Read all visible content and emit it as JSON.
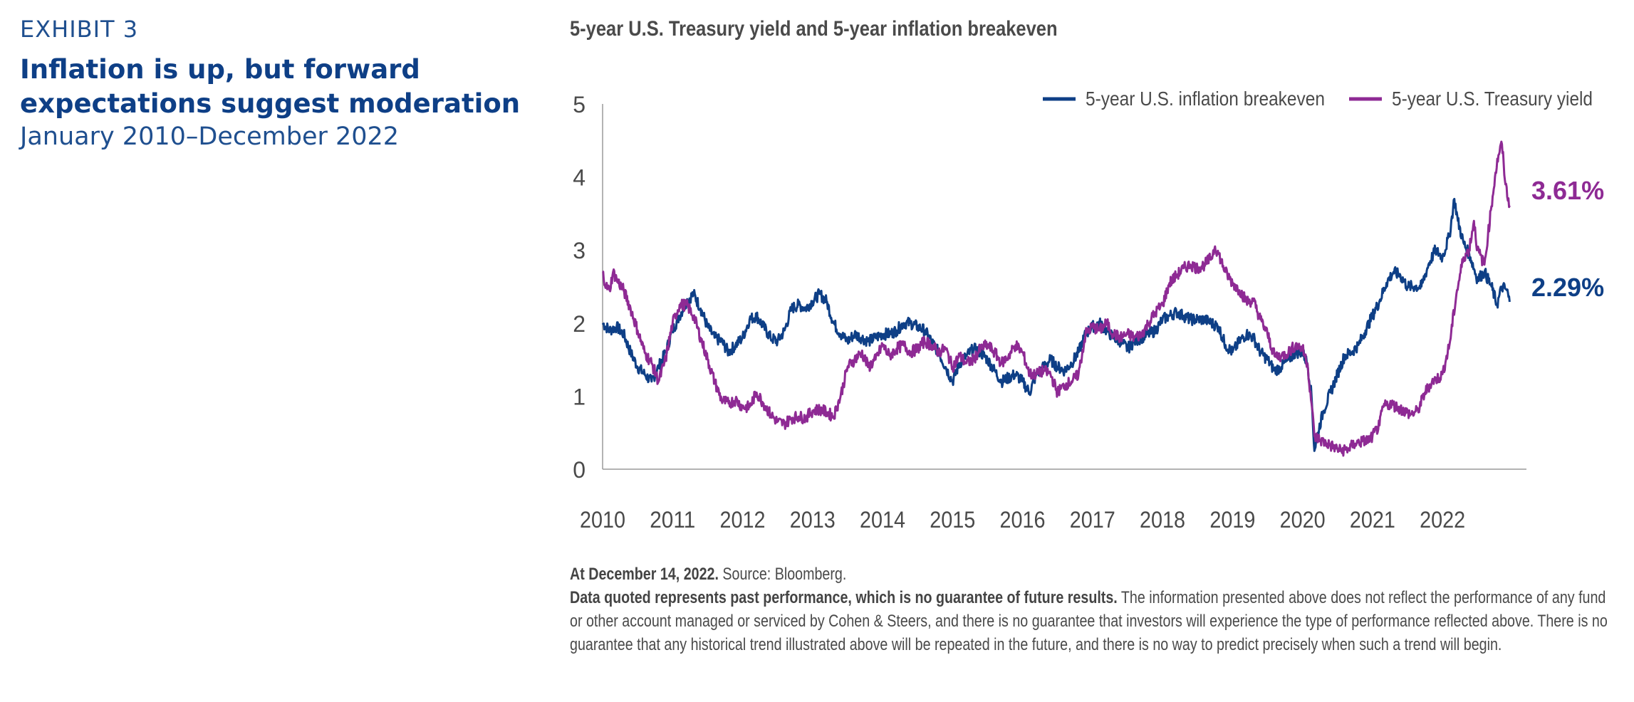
{
  "header": {
    "exhibit": "EXHIBIT 3",
    "title": "Inflation is up, but forward expectations suggest moderation",
    "date_range": "January 2010–December 2022"
  },
  "chart_title": "5-year U.S. Treasury yield and 5-year inflation breakeven",
  "legend": {
    "breakeven": "5-year U.S. inflation breakeven",
    "treasury": "5-year U.S. Treasury yield"
  },
  "end_labels": {
    "treasury": "3.61%",
    "breakeven": "2.29%"
  },
  "footnote": {
    "date_bold": "At December 14, 2022.",
    "source": " Source: Bloomberg.",
    "disclaimer_bold": "Data quoted represents past performance, which is no guarantee of future results.",
    "disclaimer": " The information presented above does not reflect the performance of any fund or other account managed or serviced by Cohen & Steers, and there is no guarantee that investors will experience the type of performance reflected above. There is no guarantee that any historical trend illustrated above will be repeated in the future, and there is no way to predict precisely when such a trend will begin."
  },
  "colors": {
    "breakeven": "#0e3f86",
    "treasury": "#8e2a94",
    "axis": "#9a9a9a",
    "tick_text": "#4a4a4a"
  },
  "chart_data": {
    "type": "line",
    "title": "5-year U.S. Treasury yield and 5-year inflation breakeven",
    "xlabel": "",
    "ylabel": "",
    "xlim": [
      2010.0,
      2023.2
    ],
    "ylim": [
      0,
      5
    ],
    "yticks": [
      0,
      1,
      2,
      3,
      4,
      5
    ],
    "xticks": [
      2010,
      2011,
      2012,
      2013,
      2014,
      2015,
      2016,
      2017,
      2018,
      2019,
      2020,
      2021,
      2022
    ],
    "grid": false,
    "legend_position": "top-right",
    "series": [
      {
        "name": "5-year U.S. inflation breakeven",
        "color_key": "breakeven",
        "points": [
          [
            2010.0,
            2.0
          ],
          [
            2010.1,
            1.9
          ],
          [
            2010.2,
            1.95
          ],
          [
            2010.3,
            1.85
          ],
          [
            2010.4,
            1.6
          ],
          [
            2010.5,
            1.4
          ],
          [
            2010.6,
            1.3
          ],
          [
            2010.7,
            1.2
          ],
          [
            2010.8,
            1.4
          ],
          [
            2010.9,
            1.6
          ],
          [
            2011.0,
            1.9
          ],
          [
            2011.1,
            2.1
          ],
          [
            2011.2,
            2.3
          ],
          [
            2011.3,
            2.4
          ],
          [
            2011.4,
            2.2
          ],
          [
            2011.5,
            1.95
          ],
          [
            2011.6,
            1.8
          ],
          [
            2011.7,
            1.75
          ],
          [
            2011.8,
            1.6
          ],
          [
            2011.9,
            1.7
          ],
          [
            2012.0,
            1.8
          ],
          [
            2012.1,
            2.05
          ],
          [
            2012.2,
            2.1
          ],
          [
            2012.3,
            1.95
          ],
          [
            2012.4,
            1.8
          ],
          [
            2012.5,
            1.75
          ],
          [
            2012.6,
            1.9
          ],
          [
            2012.7,
            2.2
          ],
          [
            2012.8,
            2.25
          ],
          [
            2012.9,
            2.2
          ],
          [
            2013.0,
            2.3
          ],
          [
            2013.1,
            2.4
          ],
          [
            2013.2,
            2.3
          ],
          [
            2013.3,
            2.0
          ],
          [
            2013.4,
            1.85
          ],
          [
            2013.5,
            1.75
          ],
          [
            2013.6,
            1.85
          ],
          [
            2013.7,
            1.8
          ],
          [
            2013.8,
            1.75
          ],
          [
            2013.9,
            1.8
          ],
          [
            2014.0,
            1.85
          ],
          [
            2014.1,
            1.85
          ],
          [
            2014.2,
            1.9
          ],
          [
            2014.3,
            2.0
          ],
          [
            2014.4,
            2.0
          ],
          [
            2014.5,
            1.95
          ],
          [
            2014.6,
            1.9
          ],
          [
            2014.7,
            1.75
          ],
          [
            2014.8,
            1.6
          ],
          [
            2014.9,
            1.4
          ],
          [
            2015.0,
            1.2
          ],
          [
            2015.1,
            1.45
          ],
          [
            2015.2,
            1.55
          ],
          [
            2015.3,
            1.65
          ],
          [
            2015.4,
            1.6
          ],
          [
            2015.5,
            1.5
          ],
          [
            2015.6,
            1.35
          ],
          [
            2015.7,
            1.2
          ],
          [
            2015.8,
            1.25
          ],
          [
            2015.9,
            1.3
          ],
          [
            2016.0,
            1.2
          ],
          [
            2016.1,
            1.05
          ],
          [
            2016.2,
            1.3
          ],
          [
            2016.3,
            1.4
          ],
          [
            2016.4,
            1.5
          ],
          [
            2016.5,
            1.4
          ],
          [
            2016.6,
            1.35
          ],
          [
            2016.7,
            1.45
          ],
          [
            2016.8,
            1.6
          ],
          [
            2016.9,
            1.85
          ],
          [
            2017.0,
            1.95
          ],
          [
            2017.1,
            2.0
          ],
          [
            2017.2,
            1.9
          ],
          [
            2017.3,
            1.8
          ],
          [
            2017.4,
            1.75
          ],
          [
            2017.5,
            1.65
          ],
          [
            2017.6,
            1.75
          ],
          [
            2017.7,
            1.8
          ],
          [
            2017.8,
            1.85
          ],
          [
            2017.9,
            1.9
          ],
          [
            2018.0,
            2.05
          ],
          [
            2018.1,
            2.1
          ],
          [
            2018.2,
            2.15
          ],
          [
            2018.3,
            2.1
          ],
          [
            2018.4,
            2.05
          ],
          [
            2018.5,
            2.05
          ],
          [
            2018.6,
            2.05
          ],
          [
            2018.7,
            2.0
          ],
          [
            2018.8,
            1.95
          ],
          [
            2018.9,
            1.7
          ],
          [
            2019.0,
            1.6
          ],
          [
            2019.1,
            1.75
          ],
          [
            2019.2,
            1.85
          ],
          [
            2019.3,
            1.8
          ],
          [
            2019.4,
            1.6
          ],
          [
            2019.5,
            1.5
          ],
          [
            2019.6,
            1.35
          ],
          [
            2019.7,
            1.4
          ],
          [
            2019.8,
            1.5
          ],
          [
            2019.9,
            1.6
          ],
          [
            2020.0,
            1.6
          ],
          [
            2020.07,
            1.45
          ],
          [
            2020.13,
            1.0
          ],
          [
            2020.17,
            0.25
          ],
          [
            2020.22,
            0.5
          ],
          [
            2020.3,
            0.8
          ],
          [
            2020.4,
            1.05
          ],
          [
            2020.5,
            1.3
          ],
          [
            2020.6,
            1.55
          ],
          [
            2020.7,
            1.6
          ],
          [
            2020.8,
            1.7
          ],
          [
            2020.9,
            1.9
          ],
          [
            2021.0,
            2.1
          ],
          [
            2021.1,
            2.3
          ],
          [
            2021.2,
            2.55
          ],
          [
            2021.3,
            2.7
          ],
          [
            2021.4,
            2.65
          ],
          [
            2021.5,
            2.5
          ],
          [
            2021.6,
            2.5
          ],
          [
            2021.7,
            2.5
          ],
          [
            2021.8,
            2.8
          ],
          [
            2021.9,
            3.0
          ],
          [
            2022.0,
            2.9
          ],
          [
            2022.1,
            3.2
          ],
          [
            2022.17,
            3.7
          ],
          [
            2022.22,
            3.4
          ],
          [
            2022.3,
            3.1
          ],
          [
            2022.4,
            2.9
          ],
          [
            2022.5,
            2.6
          ],
          [
            2022.6,
            2.7
          ],
          [
            2022.7,
            2.5
          ],
          [
            2022.78,
            2.25
          ],
          [
            2022.85,
            2.5
          ],
          [
            2022.92,
            2.45
          ],
          [
            2022.96,
            2.29
          ]
        ]
      },
      {
        "name": "5-year U.S. Treasury yield",
        "color_key": "treasury",
        "points": [
          [
            2010.0,
            2.7
          ],
          [
            2010.05,
            2.5
          ],
          [
            2010.1,
            2.45
          ],
          [
            2010.15,
            2.7
          ],
          [
            2010.2,
            2.6
          ],
          [
            2010.3,
            2.45
          ],
          [
            2010.4,
            2.2
          ],
          [
            2010.5,
            1.9
          ],
          [
            2010.6,
            1.6
          ],
          [
            2010.7,
            1.45
          ],
          [
            2010.8,
            1.2
          ],
          [
            2010.9,
            1.5
          ],
          [
            2011.0,
            2.0
          ],
          [
            2011.1,
            2.25
          ],
          [
            2011.2,
            2.25
          ],
          [
            2011.3,
            2.1
          ],
          [
            2011.4,
            1.8
          ],
          [
            2011.5,
            1.5
          ],
          [
            2011.6,
            1.2
          ],
          [
            2011.7,
            0.95
          ],
          [
            2011.8,
            0.9
          ],
          [
            2011.9,
            0.95
          ],
          [
            2012.0,
            0.85
          ],
          [
            2012.1,
            0.85
          ],
          [
            2012.2,
            1.05
          ],
          [
            2012.3,
            0.9
          ],
          [
            2012.4,
            0.75
          ],
          [
            2012.5,
            0.65
          ],
          [
            2012.6,
            0.62
          ],
          [
            2012.7,
            0.7
          ],
          [
            2012.8,
            0.72
          ],
          [
            2012.9,
            0.7
          ],
          [
            2013.0,
            0.8
          ],
          [
            2013.1,
            0.82
          ],
          [
            2013.2,
            0.78
          ],
          [
            2013.3,
            0.72
          ],
          [
            2013.4,
            1.0
          ],
          [
            2013.5,
            1.4
          ],
          [
            2013.6,
            1.5
          ],
          [
            2013.7,
            1.6
          ],
          [
            2013.8,
            1.4
          ],
          [
            2013.9,
            1.5
          ],
          [
            2014.0,
            1.7
          ],
          [
            2014.1,
            1.55
          ],
          [
            2014.2,
            1.65
          ],
          [
            2014.3,
            1.7
          ],
          [
            2014.4,
            1.6
          ],
          [
            2014.5,
            1.65
          ],
          [
            2014.6,
            1.75
          ],
          [
            2014.7,
            1.7
          ],
          [
            2014.8,
            1.6
          ],
          [
            2014.9,
            1.65
          ],
          [
            2015.0,
            1.4
          ],
          [
            2015.1,
            1.55
          ],
          [
            2015.2,
            1.45
          ],
          [
            2015.3,
            1.5
          ],
          [
            2015.4,
            1.65
          ],
          [
            2015.5,
            1.7
          ],
          [
            2015.6,
            1.6
          ],
          [
            2015.7,
            1.45
          ],
          [
            2015.8,
            1.55
          ],
          [
            2015.9,
            1.7
          ],
          [
            2016.0,
            1.6
          ],
          [
            2016.1,
            1.3
          ],
          [
            2016.2,
            1.3
          ],
          [
            2016.3,
            1.35
          ],
          [
            2016.4,
            1.3
          ],
          [
            2016.5,
            1.05
          ],
          [
            2016.6,
            1.15
          ],
          [
            2016.7,
            1.2
          ],
          [
            2016.8,
            1.3
          ],
          [
            2016.9,
            1.85
          ],
          [
            2017.0,
            1.95
          ],
          [
            2017.1,
            1.9
          ],
          [
            2017.2,
            2.0
          ],
          [
            2017.3,
            1.85
          ],
          [
            2017.4,
            1.8
          ],
          [
            2017.5,
            1.85
          ],
          [
            2017.6,
            1.8
          ],
          [
            2017.7,
            1.85
          ],
          [
            2017.8,
            2.0
          ],
          [
            2017.9,
            2.15
          ],
          [
            2018.0,
            2.25
          ],
          [
            2018.1,
            2.55
          ],
          [
            2018.2,
            2.65
          ],
          [
            2018.3,
            2.75
          ],
          [
            2018.4,
            2.8
          ],
          [
            2018.5,
            2.75
          ],
          [
            2018.6,
            2.8
          ],
          [
            2018.7,
            2.9
          ],
          [
            2018.75,
            3.05
          ],
          [
            2018.8,
            2.95
          ],
          [
            2018.9,
            2.7
          ],
          [
            2019.0,
            2.55
          ],
          [
            2019.1,
            2.45
          ],
          [
            2019.2,
            2.3
          ],
          [
            2019.3,
            2.3
          ],
          [
            2019.4,
            2.05
          ],
          [
            2019.5,
            1.85
          ],
          [
            2019.6,
            1.55
          ],
          [
            2019.7,
            1.55
          ],
          [
            2019.8,
            1.6
          ],
          [
            2019.9,
            1.7
          ],
          [
            2020.0,
            1.65
          ],
          [
            2020.07,
            1.45
          ],
          [
            2020.13,
            0.9
          ],
          [
            2020.17,
            0.45
          ],
          [
            2020.25,
            0.4
          ],
          [
            2020.35,
            0.35
          ],
          [
            2020.45,
            0.3
          ],
          [
            2020.55,
            0.25
          ],
          [
            2020.65,
            0.28
          ],
          [
            2020.75,
            0.35
          ],
          [
            2020.85,
            0.38
          ],
          [
            2020.95,
            0.4
          ],
          [
            2021.0,
            0.45
          ],
          [
            2021.1,
            0.6
          ],
          [
            2021.15,
            0.85
          ],
          [
            2021.25,
            0.9
          ],
          [
            2021.35,
            0.85
          ],
          [
            2021.45,
            0.8
          ],
          [
            2021.55,
            0.75
          ],
          [
            2021.65,
            0.8
          ],
          [
            2021.75,
            1.05
          ],
          [
            2021.85,
            1.2
          ],
          [
            2021.95,
            1.25
          ],
          [
            2022.0,
            1.3
          ],
          [
            2022.1,
            1.7
          ],
          [
            2022.2,
            2.4
          ],
          [
            2022.3,
            2.9
          ],
          [
            2022.38,
            3.0
          ],
          [
            2022.45,
            3.4
          ],
          [
            2022.5,
            3.0
          ],
          [
            2022.6,
            2.8
          ],
          [
            2022.65,
            3.2
          ],
          [
            2022.7,
            3.6
          ],
          [
            2022.75,
            4.0
          ],
          [
            2022.8,
            4.3
          ],
          [
            2022.85,
            4.45
          ],
          [
            2022.9,
            3.9
          ],
          [
            2022.96,
            3.61
          ]
        ]
      }
    ]
  }
}
